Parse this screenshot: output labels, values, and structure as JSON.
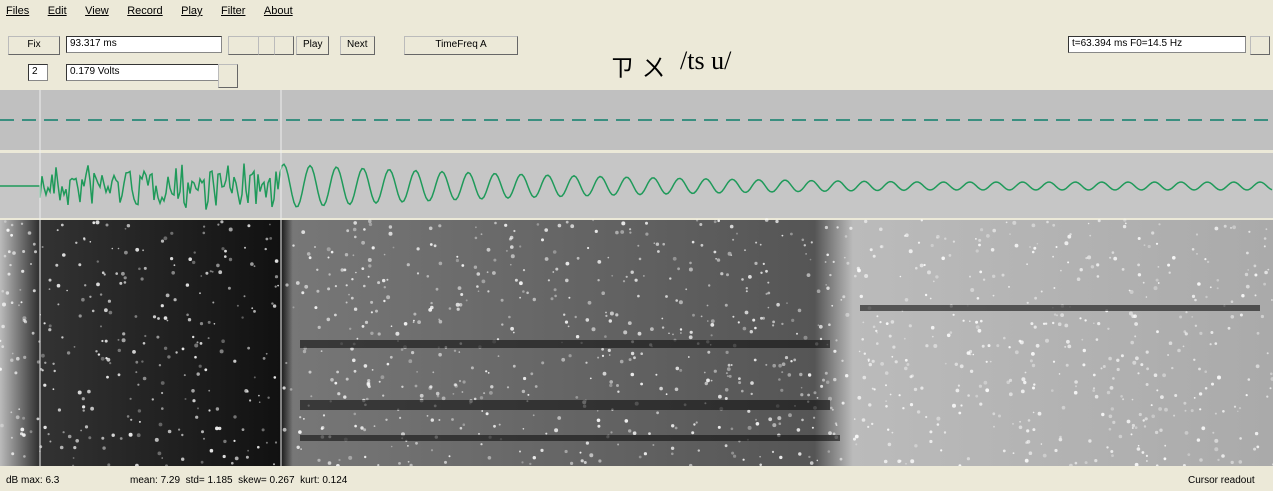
{
  "menu": [
    "Files",
    "Edit",
    "View",
    "Record",
    "Play",
    "Filter",
    "About"
  ],
  "toolbar": {
    "fix": "Fix",
    "time_field": "93.317 ms",
    "play": "Play",
    "next": "Next",
    "timefreq": "TimeFreq A",
    "channel": "2",
    "voltage_field": "0.179 Volts",
    "phonetic_zhuyin": "ㄗ ㄨ",
    "phonetic_ipa": "/ts u/",
    "readout": "t=63.394 ms F0=14.5 Hz"
  },
  "status": {
    "left": "dB max: 6.3",
    "stats": "mean: 7.29  std= 1.185  skew= 0.267  kurt: 0.124",
    "right": "Cursor readout"
  }
}
